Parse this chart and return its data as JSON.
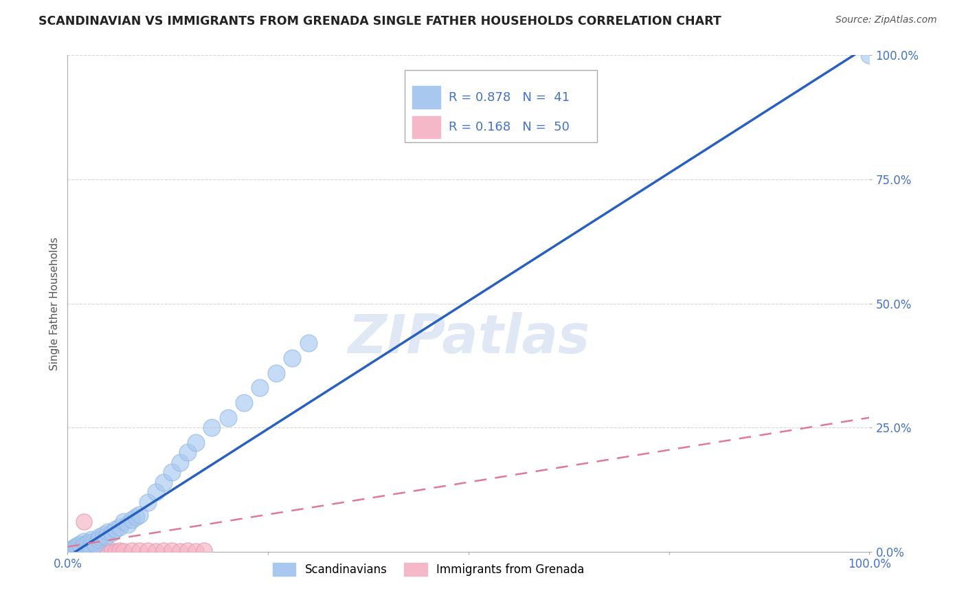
{
  "title": "SCANDINAVIAN VS IMMIGRANTS FROM GRENADA SINGLE FATHER HOUSEHOLDS CORRELATION CHART",
  "source": "Source: ZipAtlas.com",
  "ylabel": "Single Father Households",
  "watermark": "ZIPatlas",
  "blue_R": 0.878,
  "blue_N": 41,
  "pink_R": 0.168,
  "pink_N": 50,
  "blue_color": "#A8C8F0",
  "pink_color": "#F5B8C8",
  "blue_edge_color": "#90B8E0",
  "pink_edge_color": "#E898B0",
  "blue_line_color": "#2860C0",
  "pink_line_color": "#E07898",
  "axis_label_color": "#4472C4",
  "legend_R_color": "#4472C4",
  "title_color": "#222222",
  "blue_scatter_x": [
    0.005,
    0.008,
    0.01,
    0.012,
    0.015,
    0.018,
    0.02,
    0.022,
    0.025,
    0.028,
    0.03,
    0.032,
    0.035,
    0.038,
    0.04,
    0.045,
    0.048,
    0.05,
    0.055,
    0.06,
    0.065,
    0.07,
    0.075,
    0.08,
    0.085,
    0.09,
    0.1,
    0.11,
    0.12,
    0.13,
    0.14,
    0.15,
    0.16,
    0.18,
    0.2,
    0.22,
    0.24,
    0.26,
    0.28,
    0.3,
    1.0
  ],
  "blue_scatter_y": [
    0.005,
    0.008,
    0.01,
    0.012,
    0.015,
    0.01,
    0.02,
    0.015,
    0.018,
    0.01,
    0.025,
    0.02,
    0.015,
    0.025,
    0.03,
    0.035,
    0.03,
    0.04,
    0.038,
    0.045,
    0.05,
    0.06,
    0.055,
    0.065,
    0.07,
    0.075,
    0.1,
    0.12,
    0.14,
    0.16,
    0.18,
    0.2,
    0.22,
    0.25,
    0.27,
    0.3,
    0.33,
    0.36,
    0.39,
    0.42,
    1.0
  ],
  "pink_scatter_x": [
    0.0,
    0.002,
    0.003,
    0.004,
    0.005,
    0.006,
    0.007,
    0.008,
    0.009,
    0.01,
    0.011,
    0.012,
    0.013,
    0.014,
    0.015,
    0.016,
    0.017,
    0.018,
    0.019,
    0.02,
    0.021,
    0.022,
    0.023,
    0.024,
    0.025,
    0.026,
    0.028,
    0.03,
    0.032,
    0.035,
    0.038,
    0.04,
    0.042,
    0.045,
    0.05,
    0.055,
    0.06,
    0.065,
    0.07,
    0.08,
    0.09,
    0.1,
    0.11,
    0.12,
    0.13,
    0.14,
    0.15,
    0.16,
    0.17,
    0.02
  ],
  "pink_scatter_y": [
    0.0,
    0.002,
    0.001,
    0.003,
    0.0,
    0.002,
    0.001,
    0.003,
    0.0,
    0.002,
    0.001,
    0.003,
    0.0,
    0.002,
    0.001,
    0.003,
    0.0,
    0.002,
    0.001,
    0.003,
    0.0,
    0.002,
    0.001,
    0.003,
    0.0,
    0.002,
    0.001,
    0.003,
    0.0,
    0.002,
    0.001,
    0.003,
    0.0,
    0.002,
    0.001,
    0.003,
    0.0,
    0.002,
    0.001,
    0.003,
    0.002,
    0.003,
    0.001,
    0.002,
    0.003,
    0.001,
    0.002,
    0.001,
    0.002,
    0.06
  ],
  "blue_line_x": [
    0.0,
    1.0
  ],
  "blue_line_y": [
    -0.01,
    1.02
  ],
  "pink_line_x": [
    0.0,
    1.0
  ],
  "pink_line_y": [
    0.01,
    0.27
  ],
  "xlim": [
    0.0,
    1.0
  ],
  "ylim": [
    0.0,
    1.0
  ],
  "xticks": [
    0.0,
    0.25,
    0.5,
    0.75,
    1.0
  ],
  "yticks": [
    0.0,
    0.25,
    0.5,
    0.75,
    1.0
  ],
  "xticklabels": [
    "0.0%",
    "",
    "",
    "",
    "100.0%"
  ],
  "yticklabels": [
    "0.0%",
    "25.0%",
    "50.0%",
    "75.0%",
    "100.0%"
  ],
  "grid_color": "#CCCCCC",
  "background_color": "#FFFFFF"
}
